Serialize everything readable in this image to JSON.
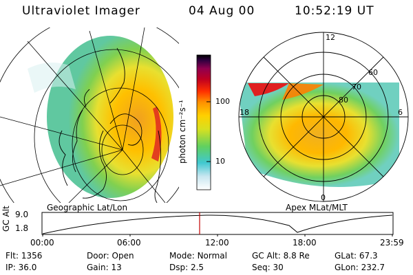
{
  "header": {
    "title": "Ultraviolet Imager",
    "date": "04 Aug 00",
    "time": "10:52:19 UT"
  },
  "left_panel": {
    "caption": "Geographic Lat/Lon"
  },
  "right_panel": {
    "caption": "Apex MLat/MLT",
    "mlt_labels": {
      "top": "12",
      "left": "18",
      "right": "6",
      "bottom": "0"
    },
    "lat_labels": [
      "80",
      "70",
      "60"
    ]
  },
  "colorbar": {
    "unit_label": "photon cm⁻²s⁻¹",
    "ticks": [
      "100",
      "10"
    ],
    "colors": [
      "#ffffff",
      "#c8e6f0",
      "#40c8d0",
      "#60d060",
      "#d8e020",
      "#ffd000",
      "#ff9000",
      "#ff3000",
      "#c00020",
      "#900050",
      "#300040",
      "#000000"
    ]
  },
  "altitude_plot": {
    "ylabel": "GC Alt",
    "y_ticks": [
      "9.0",
      "1.8"
    ],
    "x_ticks": [
      "00:00",
      "06:00",
      "12:00",
      "18:00",
      "23:59"
    ],
    "current_time_marker_color": "#c00000"
  },
  "status": {
    "row1": [
      {
        "label": "Flt:",
        "value": "1356"
      },
      {
        "label": "Door:",
        "value": "Open"
      },
      {
        "label": "Mode:",
        "value": "Normal"
      },
      {
        "label": "GC Alt:",
        "value": "8.8 Re"
      },
      {
        "label": "GLat:",
        "value": "67.3"
      }
    ],
    "row2": [
      {
        "label": "IP:",
        "value": "36.0"
      },
      {
        "label": "Gain:",
        "value": "13"
      },
      {
        "label": "Dsp:",
        "value": "2.5"
      },
      {
        "label": "Seq:",
        "value": "30"
      },
      {
        "label": "GLon:",
        "value": "232.7"
      }
    ]
  }
}
